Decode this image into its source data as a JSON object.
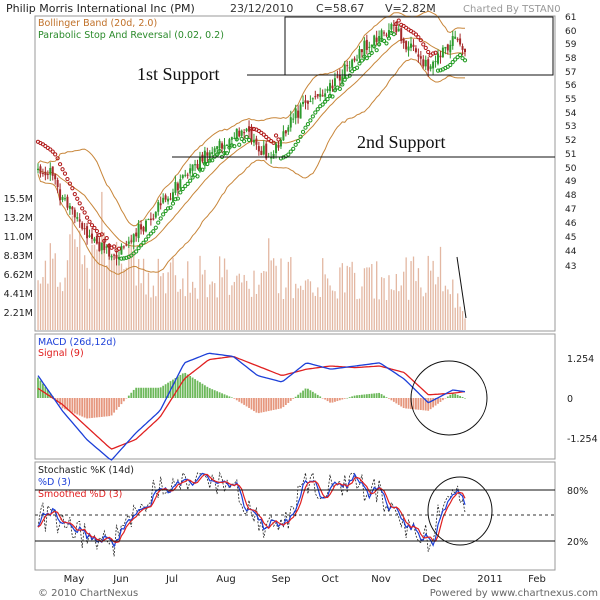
{
  "header": {
    "title": "Philip Morris International Inc (PM)",
    "date": "23/12/2010",
    "close": "C=58.67",
    "volume": "V=2.82M",
    "charted_by": "Charted By TSTAN0"
  },
  "footer": {
    "copyright": "© 2010 ChartNexus",
    "powered_by": "Powered by www.chartnexus.com"
  },
  "colors": {
    "up": "#2e9b2e",
    "down": "#a52a2a",
    "bollinger": "#c8863a",
    "sar_up": "#1f9a1f",
    "sar_down": "#b01818",
    "macd": "#1c3fd8",
    "signal": "#e02020",
    "hist_pos": "#6cb85a",
    "hist_neg": "#e6977e",
    "volume": "#e3b7a2"
  },
  "chart_data": [
    {
      "type": "candlestick",
      "title": "Philip Morris International Inc (PM)",
      "legend": [
        "Bollinger Band (20d, 2.0)",
        "Parabolic Stop And Reversal (0.02, 0.2)"
      ],
      "x_tick_labels": [
        "May",
        "Jun",
        "Jul",
        "Aug",
        "Sep",
        "Oct",
        "Nov",
        "Dec",
        "2011",
        "Feb"
      ],
      "price_axis_ticks": [
        "61",
        "60",
        "59",
        "58",
        "57",
        "56",
        "55",
        "54",
        "53",
        "52",
        "51",
        "50",
        "49",
        "48",
        "47",
        "46",
        "45",
        "44",
        "43"
      ],
      "volume_axis_ticks": [
        "15.5M",
        "13.2M",
        "11.0M",
        "8.83M",
        "6.62M",
        "4.41M",
        "2.21M"
      ],
      "ylim": [
        42.2,
        61.2
      ],
      "grid": false,
      "annotations": [
        {
          "text": "1st Support",
          "level": 57.2
        },
        {
          "text": "2nd Support",
          "level": 50.9
        }
      ],
      "close_points": [
        {
          "date": "2010-04-19",
          "close": 50.2
        },
        {
          "date": "2010-04-26",
          "close": 49.9
        },
        {
          "date": "2010-05-03",
          "close": 47.8
        },
        {
          "date": "2010-05-10",
          "close": 46.8
        },
        {
          "date": "2010-05-17",
          "close": 45.5
        },
        {
          "date": "2010-05-24",
          "close": 44.6
        },
        {
          "date": "2010-05-31",
          "close": 43.8
        },
        {
          "date": "2010-06-07",
          "close": 44.3
        },
        {
          "date": "2010-06-14",
          "close": 45.6
        },
        {
          "date": "2010-06-21",
          "close": 46.2
        },
        {
          "date": "2010-06-28",
          "close": 47.6
        },
        {
          "date": "2010-07-05",
          "close": 48.5
        },
        {
          "date": "2010-07-12",
          "close": 49.7
        },
        {
          "date": "2010-07-19",
          "close": 50.6
        },
        {
          "date": "2010-07-26",
          "close": 51.3
        },
        {
          "date": "2010-08-02",
          "close": 52.0
        },
        {
          "date": "2010-08-09",
          "close": 52.6
        },
        {
          "date": "2010-08-16",
          "close": 52.8
        },
        {
          "date": "2010-08-23",
          "close": 51.9
        },
        {
          "date": "2010-08-30",
          "close": 51.0
        },
        {
          "date": "2010-09-06",
          "close": 52.5
        },
        {
          "date": "2010-09-13",
          "close": 54.0
        },
        {
          "date": "2010-09-20",
          "close": 55.0
        },
        {
          "date": "2010-09-27",
          "close": 55.6
        },
        {
          "date": "2010-10-04",
          "close": 56.2
        },
        {
          "date": "2010-10-11",
          "close": 57.2
        },
        {
          "date": "2010-10-18",
          "close": 58.3
        },
        {
          "date": "2010-10-25",
          "close": 59.3
        },
        {
          "date": "2010-11-01",
          "close": 59.8
        },
        {
          "date": "2010-11-08",
          "close": 60.6
        },
        {
          "date": "2010-11-15",
          "close": 59.4
        },
        {
          "date": "2010-11-22",
          "close": 58.6
        },
        {
          "date": "2010-11-29",
          "close": 57.6
        },
        {
          "date": "2010-12-06",
          "close": 58.6
        },
        {
          "date": "2010-12-13",
          "close": 59.5
        },
        {
          "date": "2010-12-20",
          "close": 58.67
        }
      ]
    },
    {
      "type": "line",
      "legend": [
        "MACD (26d,12d)",
        "Signal (9)"
      ],
      "y_tick_labels": [
        "1.254",
        "0",
        "-1.254"
      ],
      "ylim": [
        -2.0,
        2.0
      ],
      "macd": [
        {
          "date": "2010-04-19",
          "value": 0.7
        },
        {
          "date": "2010-05-03",
          "value": -0.4
        },
        {
          "date": "2010-05-17",
          "value": -1.3
        },
        {
          "date": "2010-05-31",
          "value": -1.95
        },
        {
          "date": "2010-06-14",
          "value": -1.1
        },
        {
          "date": "2010-06-28",
          "value": -0.4
        },
        {
          "date": "2010-07-12",
          "value": 1.1
        },
        {
          "date": "2010-07-26",
          "value": 1.4
        },
        {
          "date": "2010-08-09",
          "value": 1.3
        },
        {
          "date": "2010-08-23",
          "value": 0.7
        },
        {
          "date": "2010-09-06",
          "value": 0.5
        },
        {
          "date": "2010-09-20",
          "value": 1.1
        },
        {
          "date": "2010-10-04",
          "value": 0.9
        },
        {
          "date": "2010-10-18",
          "value": 1.0
        },
        {
          "date": "2010-11-01",
          "value": 1.1
        },
        {
          "date": "2010-11-15",
          "value": 0.6
        },
        {
          "date": "2010-11-29",
          "value": -0.15
        },
        {
          "date": "2010-12-13",
          "value": 0.25
        },
        {
          "date": "2010-12-20",
          "value": 0.2
        }
      ],
      "signal": [
        {
          "date": "2010-04-19",
          "value": 0.3
        },
        {
          "date": "2010-05-03",
          "value": -0.2
        },
        {
          "date": "2010-05-17",
          "value": -0.9
        },
        {
          "date": "2010-05-31",
          "value": -1.6
        },
        {
          "date": "2010-06-14",
          "value": -1.3
        },
        {
          "date": "2010-06-28",
          "value": -0.6
        },
        {
          "date": "2010-07-12",
          "value": 0.6
        },
        {
          "date": "2010-07-26",
          "value": 1.2
        },
        {
          "date": "2010-08-09",
          "value": 1.3
        },
        {
          "date": "2010-08-23",
          "value": 1.0
        },
        {
          "date": "2010-09-06",
          "value": 0.7
        },
        {
          "date": "2010-09-20",
          "value": 0.9
        },
        {
          "date": "2010-10-04",
          "value": 1.0
        },
        {
          "date": "2010-10-18",
          "value": 0.95
        },
        {
          "date": "2010-11-01",
          "value": 1.0
        },
        {
          "date": "2010-11-15",
          "value": 0.8
        },
        {
          "date": "2010-11-29",
          "value": 0.1
        },
        {
          "date": "2010-12-13",
          "value": 0.15
        },
        {
          "date": "2010-12-20",
          "value": 0.2
        }
      ]
    },
    {
      "type": "line",
      "legend": [
        "Stochastic %K (14d)",
        "%D (3)",
        "Smoothed %D (3)"
      ],
      "y_tick_labels": [
        "80%",
        "20%"
      ],
      "ylim": [
        0,
        100
      ],
      "k": [
        {
          "date": "2010-04-19",
          "value": 55
        },
        {
          "date": "2010-05-03",
          "value": 40
        },
        {
          "date": "2010-05-17",
          "value": 30
        },
        {
          "date": "2010-05-31",
          "value": 20
        },
        {
          "date": "2010-06-14",
          "value": 60
        },
        {
          "date": "2010-06-28",
          "value": 88
        },
        {
          "date": "2010-07-12",
          "value": 92
        },
        {
          "date": "2010-07-26",
          "value": 90
        },
        {
          "date": "2010-08-09",
          "value": 88
        },
        {
          "date": "2010-08-23",
          "value": 45
        },
        {
          "date": "2010-09-06",
          "value": 40
        },
        {
          "date": "2010-09-20",
          "value": 86
        },
        {
          "date": "2010-10-04",
          "value": 82
        },
        {
          "date": "2010-10-18",
          "value": 85
        },
        {
          "date": "2010-11-01",
          "value": 78
        },
        {
          "date": "2010-11-15",
          "value": 35
        },
        {
          "date": "2010-11-29",
          "value": 30
        },
        {
          "date": "2010-12-13",
          "value": 85
        },
        {
          "date": "2010-12-20",
          "value": 55
        }
      ]
    }
  ]
}
